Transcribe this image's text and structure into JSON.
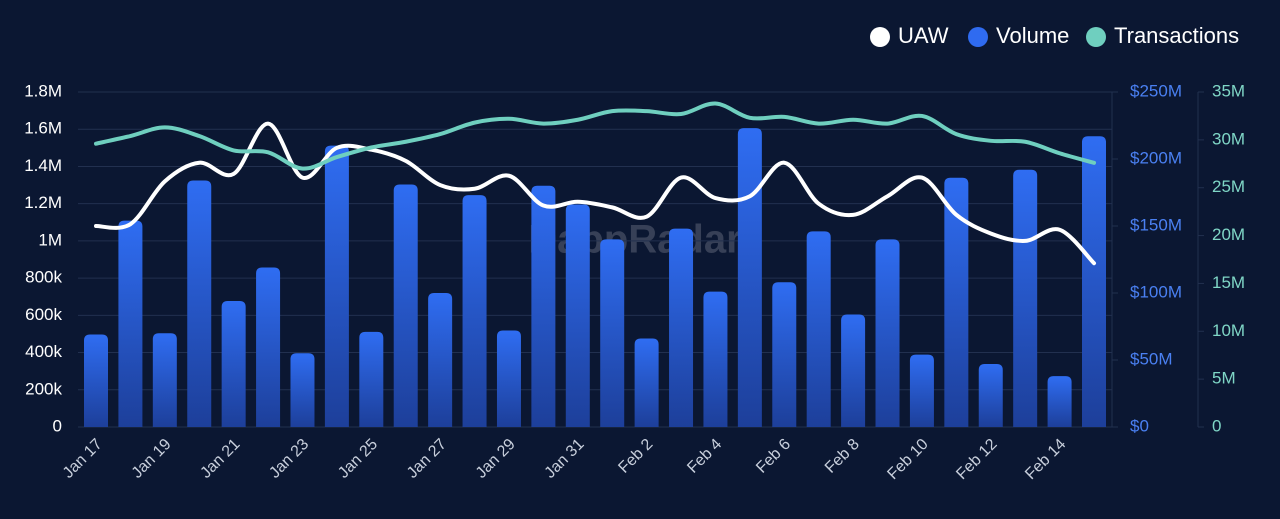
{
  "chart_data": {
    "type": "combo",
    "watermark": "DappRadar",
    "categories": [
      "Jan 17",
      null,
      "Jan 19",
      null,
      "Jan 21",
      null,
      "Jan 23",
      null,
      "Jan 25",
      null,
      "Jan 27",
      null,
      "Jan 29",
      null,
      "Jan 31",
      null,
      "Feb 2",
      null,
      "Feb 4",
      null,
      "Feb 6",
      null,
      "Feb 8",
      null,
      "Feb 10",
      null,
      "Feb 12",
      null,
      "Feb 14",
      null
    ],
    "series": [
      {
        "name": "UAW",
        "type": "line",
        "axis": "y",
        "color": "#ffffff",
        "values": [
          1080000,
          1090000,
          1320000,
          1420000,
          1360000,
          1630000,
          1340000,
          1500000,
          1490000,
          1430000,
          1300000,
          1280000,
          1350000,
          1190000,
          1210000,
          1180000,
          1130000,
          1340000,
          1230000,
          1240000,
          1420000,
          1200000,
          1140000,
          1240000,
          1340000,
          1140000,
          1040000,
          1000000,
          1060000,
          880000
        ]
      },
      {
        "name": "Volume",
        "type": "bar",
        "axis": "y2",
        "color": "#2f6bf0",
        "values": [
          69000000,
          154000000,
          70000000,
          184000000,
          94000000,
          119000000,
          55000000,
          210000000,
          71000000,
          181000000,
          100000000,
          173000000,
          72000000,
          180000000,
          166000000,
          140000000,
          66000000,
          148000000,
          101000000,
          223000000,
          108000000,
          146000000,
          84000000,
          140000000,
          54000000,
          186000000,
          47000000,
          192000000,
          38000000,
          217000000
        ]
      },
      {
        "name": "Transactions",
        "type": "line",
        "axis": "y3",
        "color": "#6fcfbf",
        "values": [
          29600000,
          30400000,
          31300000,
          30400000,
          28900000,
          28700000,
          27000000,
          28200000,
          29200000,
          29800000,
          30600000,
          31800000,
          32200000,
          31700000,
          32100000,
          33000000,
          33000000,
          32700000,
          33800000,
          32300000,
          32400000,
          31700000,
          32100000,
          31700000,
          32500000,
          30600000,
          29900000,
          29800000,
          28600000,
          27600000
        ]
      }
    ],
    "ylim": [
      0,
      1800000
    ],
    "yticks": [
      0,
      {
        "value": 200000,
        "label": "200k"
      },
      {
        "value": 400000,
        "label": "400k"
      },
      {
        "value": 600000,
        "label": "600k"
      },
      {
        "value": 800000,
        "label": "800k"
      },
      {
        "value": 1000000,
        "label": "1M"
      },
      {
        "value": 1200000,
        "label": "1.2M"
      },
      {
        "value": 1400000,
        "label": "1.4M"
      },
      {
        "value": 1600000,
        "label": "1.6M"
      },
      {
        "value": 1800000,
        "label": "1.8M"
      }
    ],
    "y2lim": [
      0,
      250000000
    ],
    "y2ticks": [
      {
        "value": 0,
        "label": "$0"
      },
      {
        "value": 50000000,
        "label": "$50M"
      },
      {
        "value": 100000000,
        "label": "$100M"
      },
      {
        "value": 150000000,
        "label": "$150M"
      },
      {
        "value": 200000000,
        "label": "$200M"
      },
      {
        "value": 250000000,
        "label": "$250M"
      }
    ],
    "y3lim": [
      0,
      35000000
    ],
    "y3ticks": [
      0,
      {
        "value": 5000000,
        "label": "5M"
      },
      {
        "value": 10000000,
        "label": "10M"
      },
      {
        "value": 15000000,
        "label": "15M"
      },
      {
        "value": 20000000,
        "label": "20M"
      },
      {
        "value": 25000000,
        "label": "25M"
      },
      {
        "value": 30000000,
        "label": "30M"
      },
      {
        "value": 35000000,
        "label": "35M"
      }
    ],
    "grid": true
  }
}
